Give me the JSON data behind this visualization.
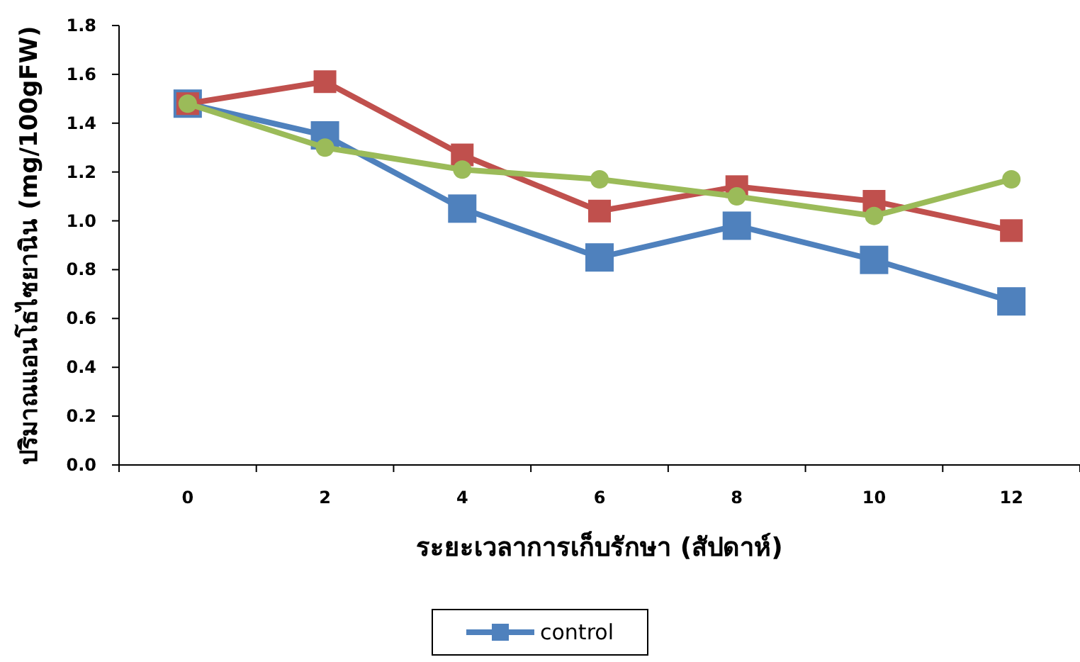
{
  "chart_data": {
    "type": "line",
    "xlabel": "ระยะเวลาการเก็บรักษา (สัปดาห์)",
    "ylabel": "ปริมาณแอนโธไซยานิน (mg/100gFW)",
    "categories": [
      "0",
      "2",
      "4",
      "6",
      "8",
      "10",
      "12"
    ],
    "series": [
      {
        "name": "control",
        "color": "#4f81bd",
        "values": [
          1.48,
          1.35,
          1.05,
          0.85,
          0.98,
          0.84,
          0.67
        ],
        "marker": "square"
      },
      {
        "color": "#c0504d",
        "values": [
          1.48,
          1.57,
          1.27,
          1.04,
          1.14,
          1.08,
          0.96
        ],
        "marker": "square"
      },
      {
        "color": "#9bbb59",
        "values": [
          1.48,
          1.3,
          1.21,
          1.17,
          1.1,
          1.02,
          1.17
        ],
        "marker": "circle"
      }
    ],
    "ylim": [
      0,
      1.8
    ],
    "yticks": [
      {
        "value": 0,
        "label": "0.0"
      },
      {
        "value": 0.2,
        "label": "0.2"
      },
      {
        "value": 0.4,
        "label": "0.4"
      },
      {
        "value": 0.6,
        "label": "0.6"
      },
      {
        "value": 0.8,
        "label": "0.8"
      },
      {
        "value": 1,
        "label": "1.0"
      },
      {
        "value": 1.2,
        "label": "1.2"
      },
      {
        "value": 1.4,
        "label": "1.4"
      },
      {
        "value": 1.6,
        "label": "1.6"
      },
      {
        "value": 1.8,
        "label": "1.8"
      }
    ],
    "grid": false,
    "legend": "bottom",
    "line_style": "solid"
  }
}
